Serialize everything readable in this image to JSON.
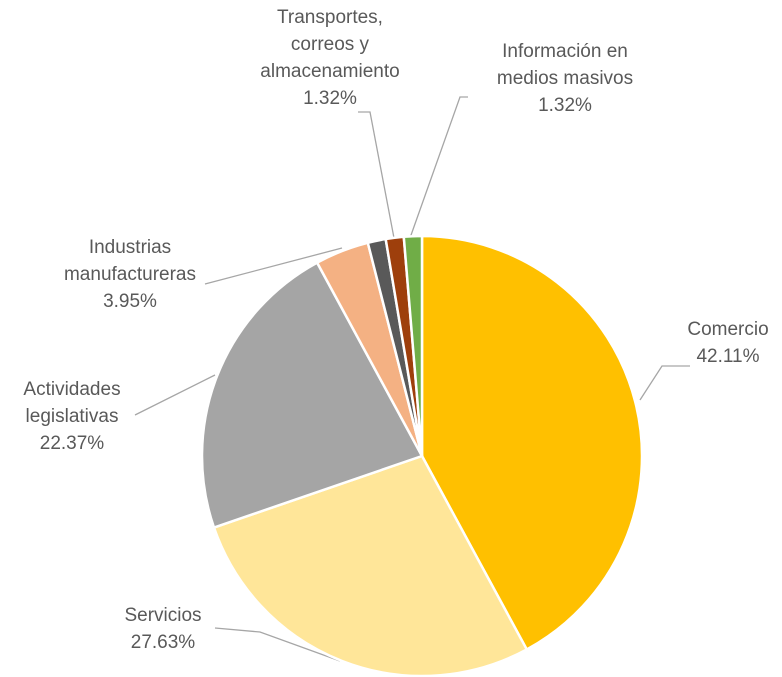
{
  "chart_data": {
    "type": "pie",
    "categories": [
      "Comercio",
      "Servicios",
      "Actividades legislativas",
      "Industrias manufactureras",
      null,
      "Transportes, correos y almacenamiento",
      "Información en medios masivos"
    ],
    "values": [
      42.11,
      27.63,
      22.37,
      3.95,
      1.32,
      1.32,
      1.32
    ],
    "value_labels": [
      "42.11%",
      "27.63%",
      "22.37%",
      "3.95%",
      null,
      "1.32%",
      "1.32%"
    ],
    "colors": [
      "#ffc000",
      "#ffe699",
      "#a5a5a5",
      "#f4b183",
      "#595959",
      "#9e3f0c",
      "#70ad47"
    ]
  }
}
